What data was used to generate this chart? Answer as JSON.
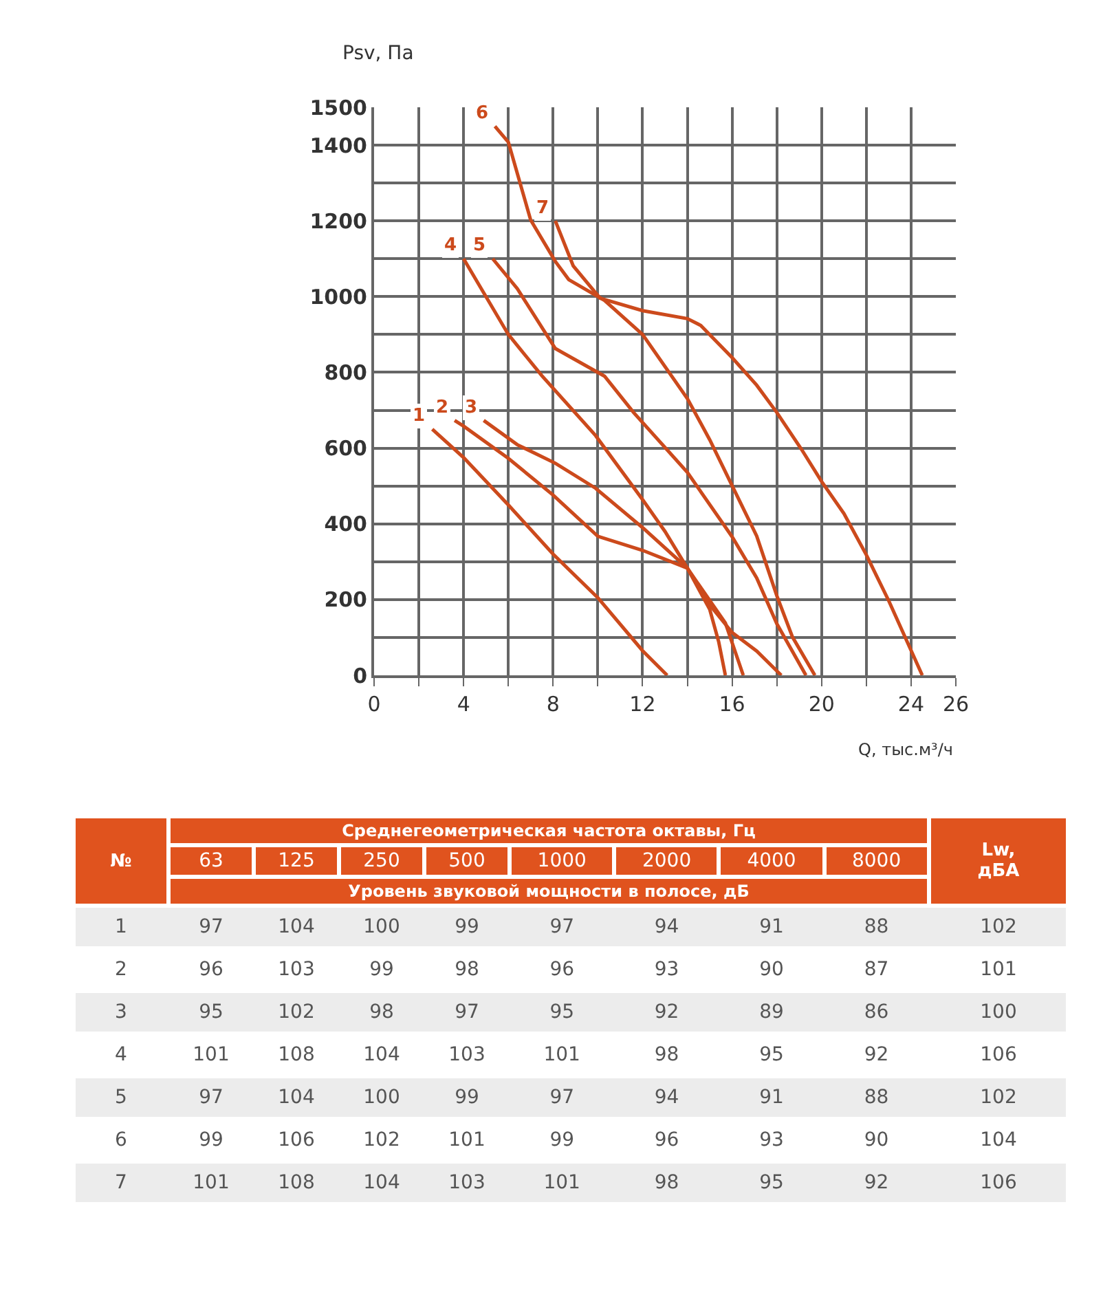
{
  "chart_data": [
    {
      "type": "line",
      "xlabel": "Q, тыс.м³/ч",
      "ylabel": "Psv, Па",
      "xlim": [
        0,
        26
      ],
      "xticks": [
        0,
        {
          "value": 2,
          "label": null
        },
        4,
        {
          "value": 6,
          "label": null
        },
        8,
        {
          "value": 10,
          "label": null
        },
        12,
        {
          "value": 14,
          "label": null
        },
        16,
        {
          "value": 18,
          "label": null
        },
        20,
        {
          "value": 22,
          "label": null
        },
        24,
        26
      ],
      "ylim": [
        0,
        1500
      ],
      "yticks": [
        0,
        {
          "value": 100,
          "label": null
        },
        200,
        {
          "value": 300,
          "label": null
        },
        400,
        {
          "value": 500,
          "label": null
        },
        600,
        {
          "value": 700,
          "label": null
        },
        800,
        {
          "value": 900,
          "label": null
        },
        1000,
        {
          "value": 1100,
          "label": null
        },
        1200,
        {
          "value": 1300,
          "label": null
        },
        1400,
        1500
      ],
      "grid": true,
      "series": [
        {
          "name": "1",
          "color": "#cc4a1c",
          "x": [
            2.6,
            4,
            6,
            8,
            10,
            12,
            13.1
          ],
          "values": [
            650,
            575,
            450,
            320,
            205,
            65,
            0
          ]
        },
        {
          "name": "2",
          "color": "#cc4a1c",
          "x": [
            3.6,
            4,
            6,
            8,
            10,
            12,
            14,
            15.7,
            16.5
          ],
          "values": [
            673,
            658,
            573,
            476,
            367,
            330,
            283,
            138,
            0
          ]
        },
        {
          "name": "3",
          "color": "#cc4a1c",
          "x": [
            4.9,
            6.4,
            8.1,
            9.9,
            12,
            14,
            15,
            15.4,
            15.7
          ],
          "values": [
            673,
            609,
            560,
            494,
            390,
            283,
            174,
            89,
            0
          ]
        },
        {
          "name": "4",
          "color": "#cc4a1c",
          "x": [
            4,
            6,
            7.5,
            9.9,
            12,
            13,
            14,
            15,
            16,
            17.1,
            18.2
          ],
          "values": [
            1100,
            900,
            791,
            633,
            464,
            380,
            283,
            186,
            113,
            64,
            0
          ]
        },
        {
          "name": "5",
          "color": "#cc4a1c",
          "x": [
            5.3,
            6.4,
            8.1,
            10.3,
            11.6,
            14,
            16,
            17.1,
            18,
            19.3
          ],
          "values": [
            1100,
            1021,
            863,
            790,
            694,
            536,
            366,
            257,
            136,
            0
          ]
        },
        {
          "name": "6",
          "color": "#cc4a1c",
          "x": [
            5.4,
            6,
            7,
            8.1,
            8.7,
            10.3,
            12,
            14,
            15,
            16,
            17.1,
            18,
            18.7,
            19.7
          ],
          "values": [
            1450,
            1408,
            1202,
            1093,
            1045,
            990,
            900,
            731,
            622,
            501,
            368,
            210,
            101,
            0
          ]
        },
        {
          "name": "7",
          "color": "#cc4a1c",
          "x": [
            8.1,
            8.9,
            10.1,
            12,
            14,
            14.6,
            16,
            17.1,
            18,
            19.1,
            20,
            21,
            22,
            23,
            24.5
          ],
          "values": [
            1200,
            1081,
            996,
            963,
            942,
            924,
            839,
            766,
            694,
            597,
            512,
            427,
            318,
            197,
            0
          ]
        }
      ]
    },
    {
      "type": "heatmap",
      "data_labels": true,
      "xlabel": "Среднегеометрическая частота октавы, Гц",
      "subtitle": "Уровень звуковой мощности в полосе, дБ",
      "ylabel": "№",
      "categories": [
        "63",
        "125",
        "250",
        "500",
        "1000",
        "2000",
        "4000",
        "8000",
        "Lw, дБА"
      ],
      "y_categories": [
        "1",
        "2",
        "3",
        "4",
        "5",
        "6",
        "7"
      ],
      "cells": [
        [
          97,
          104,
          100,
          99,
          97,
          94,
          91,
          88,
          102
        ],
        [
          96,
          103,
          99,
          98,
          96,
          93,
          90,
          87,
          101
        ],
        [
          95,
          102,
          98,
          97,
          95,
          92,
          89,
          86,
          100
        ],
        [
          101,
          108,
          104,
          103,
          101,
          98,
          95,
          92,
          106
        ],
        [
          97,
          104,
          100,
          99,
          97,
          94,
          91,
          88,
          102
        ],
        [
          99,
          106,
          102,
          101,
          99,
          96,
          93,
          90,
          104
        ],
        [
          101,
          108,
          104,
          103,
          101,
          98,
          95,
          92,
          106
        ]
      ]
    }
  ]
}
